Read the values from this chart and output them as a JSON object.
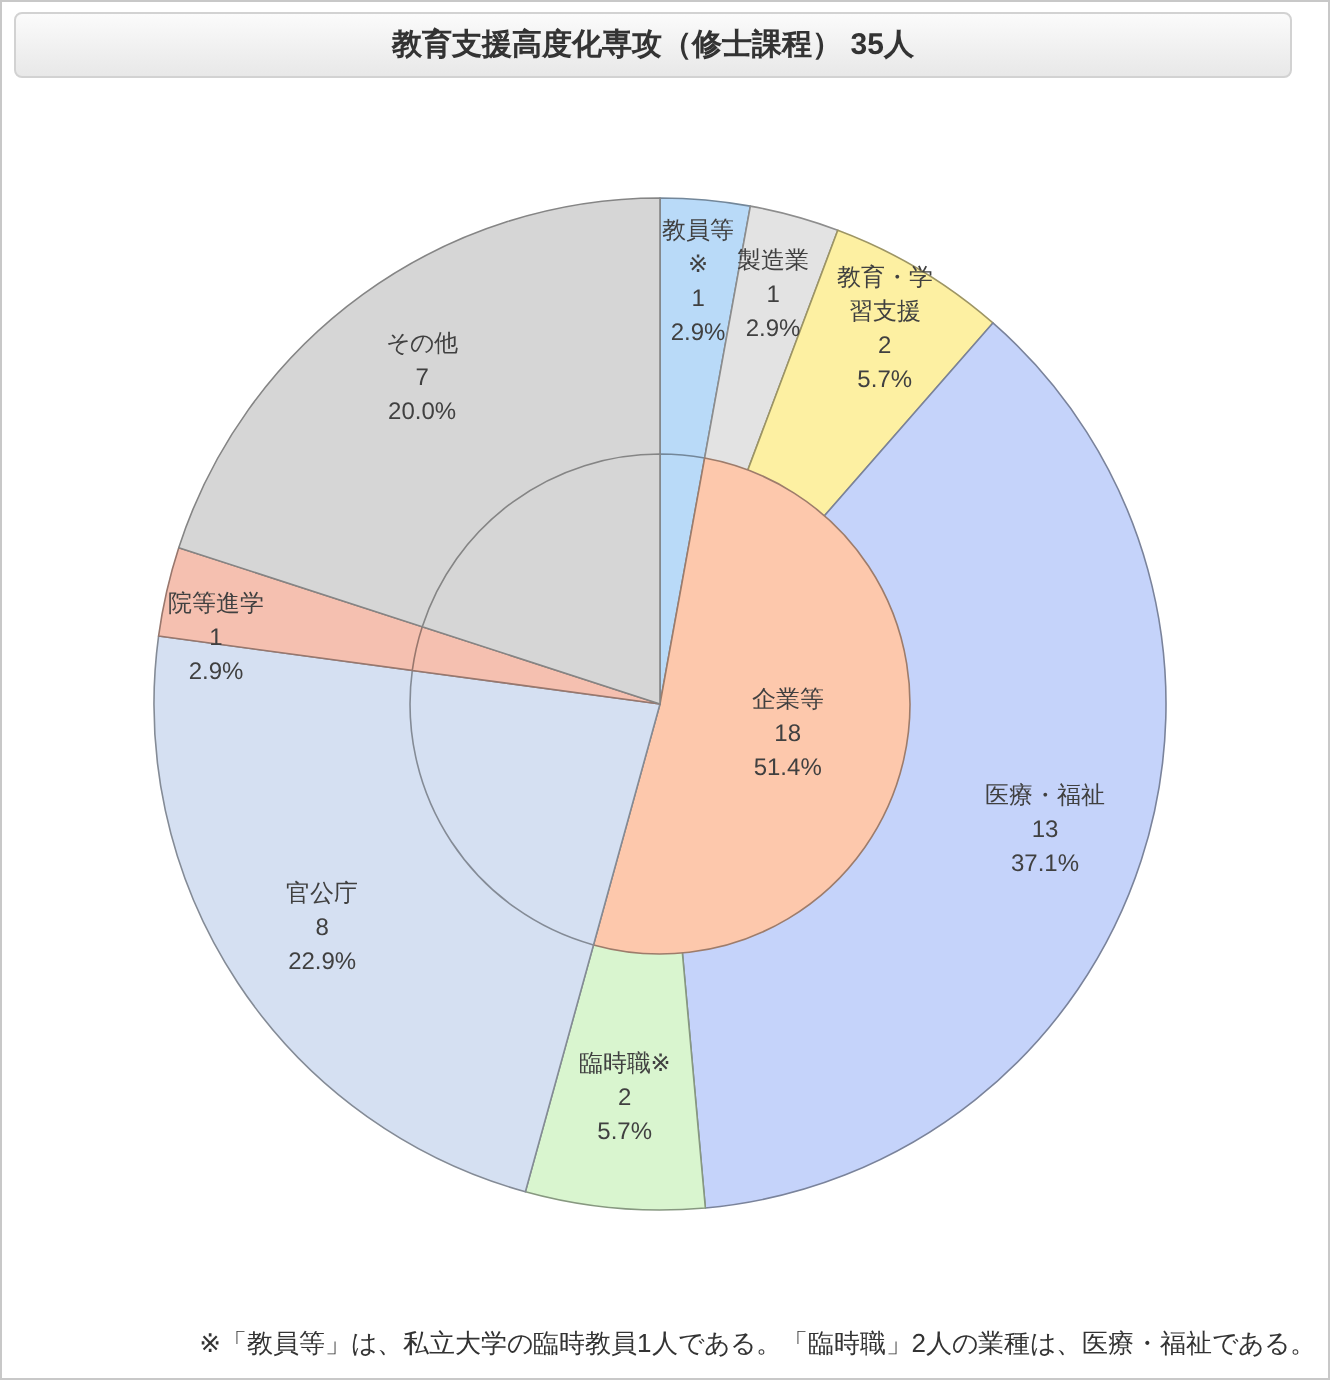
{
  "chart_data": [
    {
      "type": "pie",
      "title": "教育支援高度化専攻（修士課程） 35人",
      "annotations": [
        "※「教員等」は、私立大学の臨時教員1人である。「臨時職」2人の業種は、医療・福祉である。"
      ],
      "categories": [
        "教員等※",
        "製造業",
        "教育・学習支援",
        "医療・福祉",
        "臨時職※",
        "官公庁",
        "院等進学",
        "その他"
      ],
      "values": [
        1,
        1,
        2,
        13,
        2,
        8,
        1,
        7
      ],
      "colors": [
        "#b9daf8",
        "#e3e3e3",
        "#fdf0a2",
        "#c5d3fa",
        "#d9f5cf",
        "#d5e0f2",
        "#f5c0b0",
        "#d6d6d6"
      ],
      "value_labels": [
        "1\n2.9%",
        "1\n2.9%",
        "2\n5.7%",
        "13\n37.1%",
        "2\n5.7%",
        "8\n22.9%",
        "1\n2.9%",
        "7\n20.0%"
      ]
    },
    {
      "type": "pie",
      "categories": [
        null,
        "企業等",
        null,
        null,
        null
      ],
      "values": [
        1,
        18,
        8,
        1,
        7
      ],
      "colors": [
        "#b9daf8",
        "#fdc8ac",
        "#d5e0f2",
        "#f5c0b0",
        "#d6d6d6"
      ],
      "value_labels": [
        null,
        "18\n51.4%",
        null,
        null,
        null
      ]
    }
  ]
}
